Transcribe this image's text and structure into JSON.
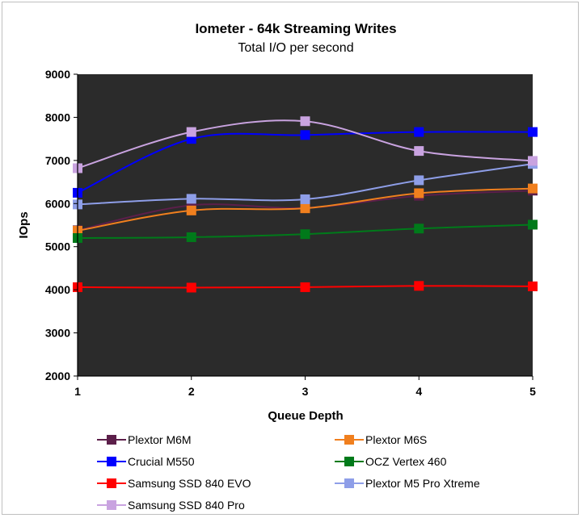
{
  "chart_data": {
    "type": "line",
    "title": "Iometer - 64k Streaming Writes",
    "subtitle": "Total I/O per second",
    "xlabel": "Queue Depth",
    "ylabel": "IOps",
    "x": [
      1,
      2,
      3,
      4,
      5
    ],
    "x_tick_labels": [
      "1",
      "2",
      "3",
      "4",
      "5"
    ],
    "ylim": [
      2000,
      9000
    ],
    "y_ticks": [
      2000,
      3000,
      4000,
      5000,
      6000,
      7000,
      8000,
      9000
    ],
    "y_tick_labels": [
      "2000",
      "3000",
      "4000",
      "5000",
      "6000",
      "7000",
      "8000",
      "9000"
    ],
    "plot_background": "#2b2b2b",
    "grid": false,
    "legend_position": "bottom",
    "series": [
      {
        "name": "Plextor M6M",
        "color": "#5c1f4a",
        "values": [
          5380,
          5960,
          5900,
          6180,
          6300
        ]
      },
      {
        "name": "Plextor M6S",
        "color": "#f07f1e",
        "values": [
          5370,
          5840,
          5890,
          6240,
          6350
        ]
      },
      {
        "name": "Crucial M550",
        "color": "#0000ff",
        "values": [
          6250,
          7500,
          7590,
          7660,
          7660
        ]
      },
      {
        "name": "OCZ Vertex 460",
        "color": "#007a1a",
        "values": [
          5200,
          5220,
          5290,
          5420,
          5510
        ]
      },
      {
        "name": "Samsung SSD 840 EVO",
        "color": "#ff0000",
        "values": [
          4060,
          4050,
          4060,
          4090,
          4080
        ]
      },
      {
        "name": "Plextor M5 Pro Xtreme",
        "color": "#8e9ee8",
        "values": [
          5980,
          6110,
          6100,
          6540,
          6920
        ]
      },
      {
        "name": "Samsung SSD 840 Pro",
        "color": "#c9a3e0",
        "values": [
          6820,
          7660,
          7910,
          7220,
          6990
        ]
      }
    ]
  }
}
